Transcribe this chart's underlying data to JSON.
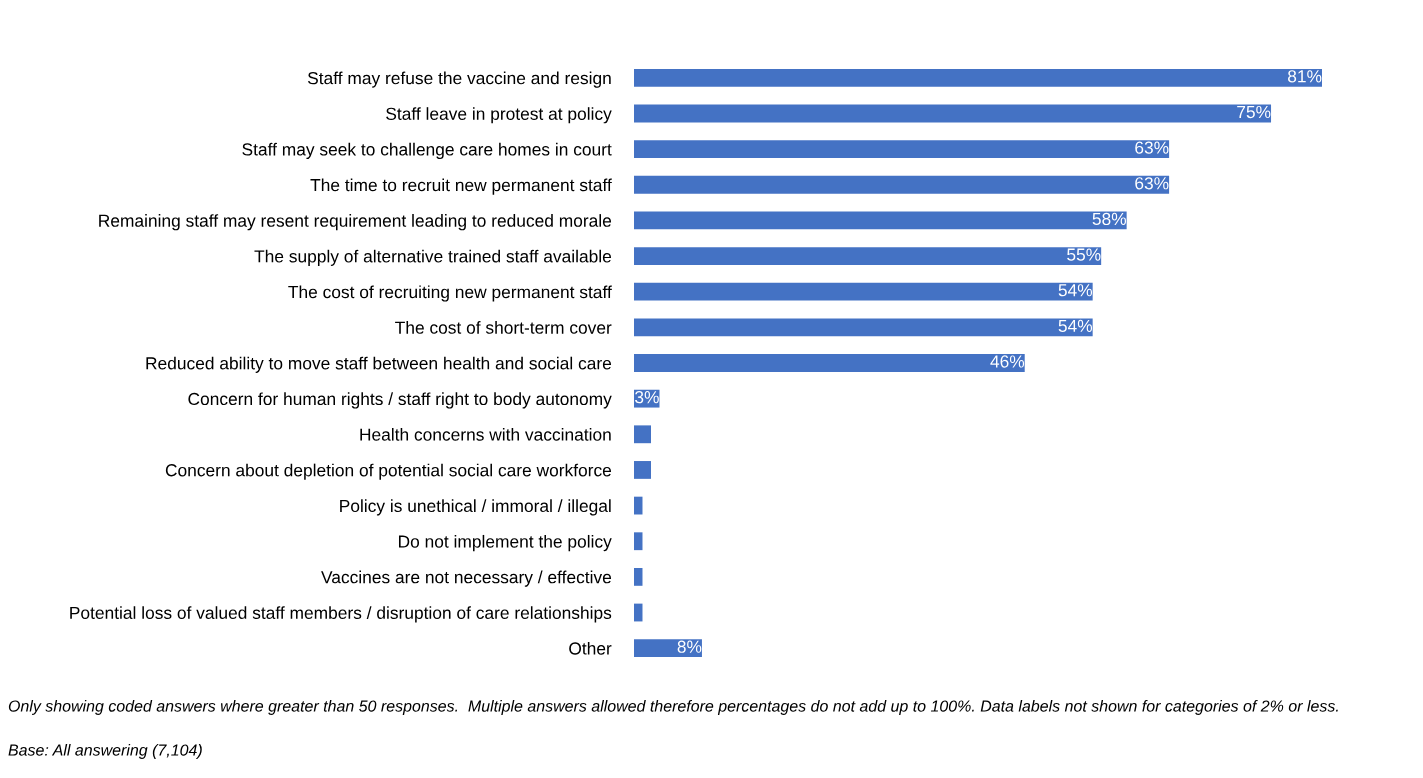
{
  "chart_data": {
    "type": "bar",
    "orientation": "horizontal",
    "color": "#4472c4",
    "categories": [
      "Staff may refuse the vaccine and resign",
      "Staff leave in protest at policy",
      "Staff may seek to challenge care homes in court",
      "The time to recruit new permanent staff",
      "Remaining staff may resent requirement leading to reduced morale",
      "The supply of alternative trained staff available",
      "The cost of recruiting new permanent staff",
      "The cost of short-term cover",
      "Reduced ability to move staff between health and social care",
      "Concern for human rights / staff right to body autonomy",
      "Health concerns with vaccination",
      "Concern about depletion of potential social care workforce",
      "Policy is unethical / immoral / illegal",
      "Do not implement the policy",
      "Vaccines are not necessary / effective",
      "Potential loss of valued staff members / disruption of care relationships",
      "Other"
    ],
    "values": [
      81,
      75,
      63,
      63,
      58,
      55,
      54,
      54,
      46,
      3,
      2,
      2,
      1,
      1,
      1,
      1,
      8
    ],
    "value_labels": [
      "81%",
      "75%",
      "63%",
      "63%",
      "58%",
      "55%",
      "54%",
      "54%",
      "46%",
      "3%",
      null,
      null,
      null,
      null,
      null,
      null,
      "8%"
    ],
    "annotations": [
      "Only showing coded answers where greater than 50 responses.  Multiple answers allowed therefore percentages do not add up to 100%. Data labels not shown for categories of 2% or less.",
      "Base: All answering (7,104)"
    ],
    "grid": false,
    "legend": false
  }
}
